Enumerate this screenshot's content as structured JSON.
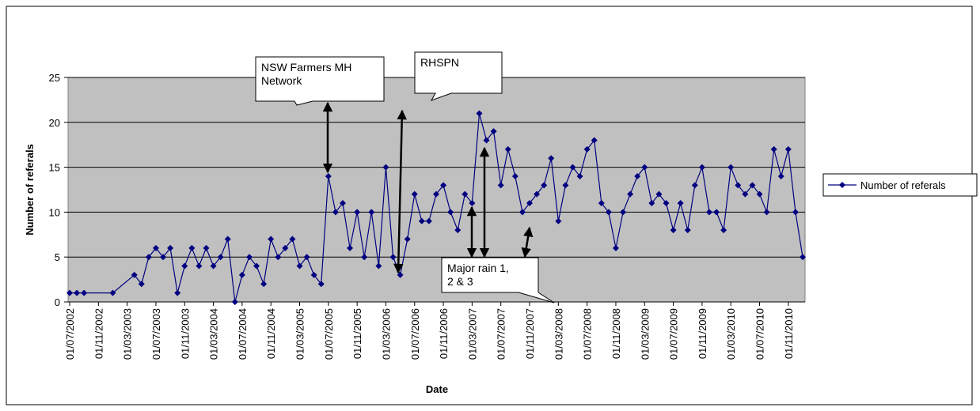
{
  "chart_data": {
    "type": "line",
    "x_label": "Date",
    "y_label": "Number of referals",
    "x": [
      "01/07/2002",
      "01/08/2002",
      "01/09/2002",
      "01/01/2003",
      "01/04/2003",
      "01/05/2003",
      "01/06/2003",
      "01/07/2003",
      "01/08/2003",
      "01/09/2003",
      "01/10/2003",
      "01/11/2003",
      "01/12/2003",
      "01/01/2004",
      "01/02/2004",
      "01/03/2004",
      "01/04/2004",
      "01/05/2004",
      "01/06/2004",
      "01/07/2004",
      "01/08/2004",
      "01/09/2004",
      "01/10/2004",
      "01/11/2004",
      "01/12/2004",
      "01/01/2005",
      "01/02/2005",
      "01/03/2005",
      "01/04/2005",
      "01/05/2005",
      "01/06/2005",
      "01/07/2005",
      "01/08/2005",
      "01/09/2005",
      "01/10/2005",
      "01/11/2005",
      "01/12/2005",
      "01/01/2006",
      "01/02/2006",
      "01/03/2006",
      "01/04/2006",
      "01/05/2006",
      "01/06/2006",
      "01/07/2006",
      "01/08/2006",
      "01/09/2006",
      "01/10/2006",
      "01/11/2006",
      "01/12/2006",
      "01/01/2007",
      "01/02/2007",
      "01/03/2007",
      "01/04/2007",
      "01/05/2007",
      "01/06/2007",
      "01/07/2007",
      "01/08/2007",
      "01/09/2007",
      "01/10/2007",
      "01/11/2007",
      "01/12/2007",
      "01/01/2008",
      "01/02/2008",
      "01/03/2008",
      "01/04/2008",
      "01/05/2008",
      "01/06/2008",
      "01/07/2008",
      "01/08/2008",
      "01/09/2008",
      "01/10/2008",
      "01/11/2008",
      "01/12/2008",
      "01/01/2009",
      "01/02/2009",
      "01/03/2009",
      "01/04/2009",
      "01/05/2009",
      "01/06/2009",
      "01/07/2009",
      "01/08/2009",
      "01/09/2009",
      "01/10/2009",
      "01/11/2009",
      "01/12/2009",
      "01/01/2010",
      "01/02/2010",
      "01/03/2010",
      "01/04/2010",
      "01/05/2010",
      "01/06/2010",
      "01/07/2010",
      "01/08/2010",
      "01/09/2010",
      "01/10/2010",
      "01/11/2010",
      "01/12/2010",
      "01/01/2011"
    ],
    "series": [
      {
        "name": "Number of referals",
        "color": "#000080",
        "values": [
          1,
          1,
          1,
          1,
          3,
          2,
          5,
          6,
          5,
          6,
          1,
          4,
          6,
          4,
          6,
          4,
          5,
          7,
          0,
          3,
          5,
          4,
          2,
          7,
          5,
          6,
          7,
          4,
          5,
          3,
          2,
          14,
          10,
          11,
          6,
          10,
          5,
          10,
          4,
          15,
          5,
          3,
          7,
          12,
          9,
          9,
          12,
          13,
          10,
          8,
          12,
          11,
          21,
          18,
          19,
          13,
          17,
          14,
          10,
          11,
          12,
          13,
          16,
          9,
          13,
          15,
          14,
          17,
          18,
          11,
          10,
          6,
          10,
          12,
          14,
          15,
          11,
          12,
          11,
          8,
          11,
          8,
          13,
          15,
          10,
          10,
          8,
          15,
          13,
          12,
          13,
          12,
          10,
          17,
          14,
          17,
          10,
          5
        ]
      }
    ],
    "xlim": [
      "01/07/2002",
      "01/01/2011"
    ],
    "xticks": [
      "01/07/2002",
      "01/11/2002",
      "01/03/2003",
      "01/07/2003",
      "01/11/2003",
      "01/03/2004",
      "01/07/2004",
      "01/11/2004",
      "01/03/2005",
      "01/07/2005",
      "01/11/2005",
      "01/03/2006",
      "01/07/2006",
      "01/11/2006",
      "01/03/2007",
      "01/07/2007",
      "01/11/2007",
      "01/03/2008",
      "01/07/2008",
      "01/11/2008",
      "01/03/2009",
      "01/07/2009",
      "01/11/2009",
      "01/03/2010",
      "01/07/2010",
      "01/11/2010"
    ],
    "ylim": [
      0,
      25
    ],
    "yticks": [
      0,
      5,
      10,
      15,
      20,
      25
    ],
    "grid": true,
    "legend": "right",
    "annotations": [
      "NSW Farmers MH Network",
      "RHSPN",
      "Major rain 1, 2 & 3"
    ]
  }
}
